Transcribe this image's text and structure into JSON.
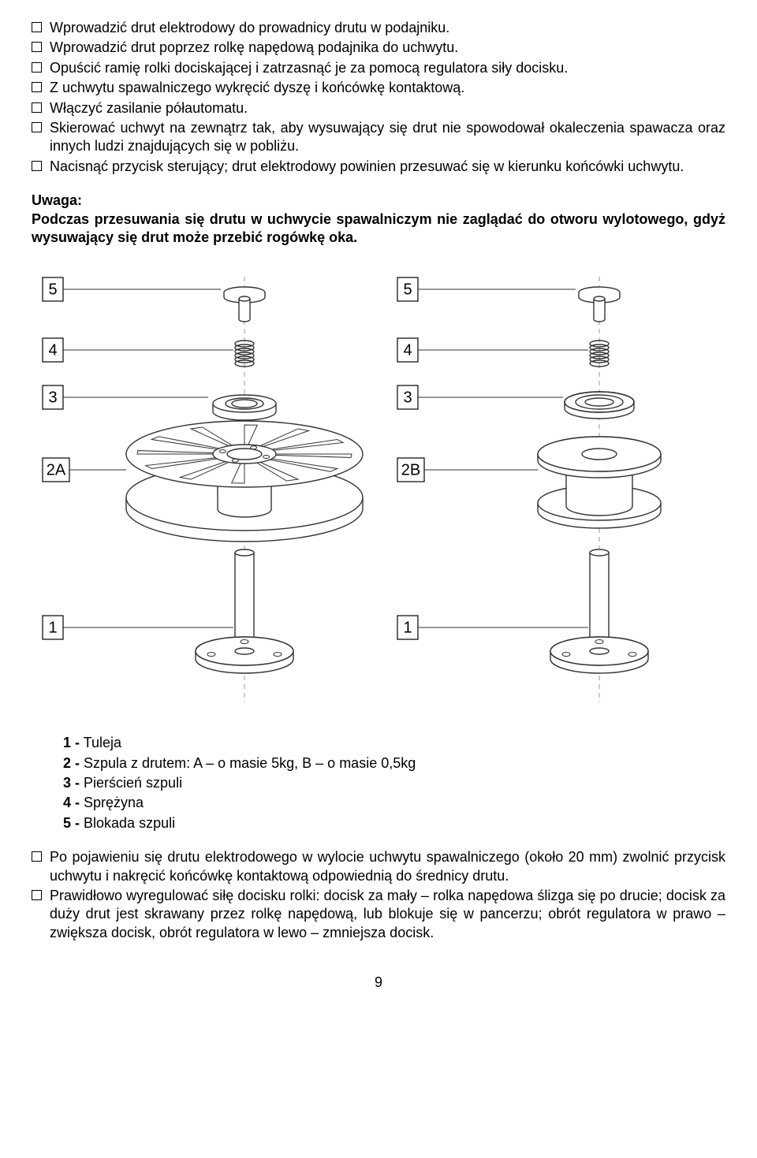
{
  "bullets_top": [
    "Wprowadzić drut elektrodowy do prowadnicy drutu w podajniku.",
    "Wprowadzić drut poprzez rolkę napędową podajnika do uchwytu.",
    "Opuścić ramię rolki dociskającej i zatrzasnąć je za pomocą regulatora siły docisku.",
    "Z uchwytu spawalniczego wykręcić dyszę i końcówkę kontaktową.",
    "Włączyć zasilanie półautomatu.",
    "Skierować uchwyt na zewnątrz tak, aby wysuwający się drut nie spowodował okaleczenia spawacza oraz innych ludzi znajdujących się w pobliżu.",
    "Nacisnąć przycisk sterujący; drut elektrodowy powinien przesuwać się w kierunku końcówki uchwytu."
  ],
  "warning": {
    "title": "Uwaga:",
    "text": "Podczas przesuwania się drutu w uchwycie spawalniczym nie zaglądać do otworu wylotowego, gdyż wysuwający się drut może przebić rogówkę oka."
  },
  "diagram": {
    "left_labels": [
      "5",
      "4",
      "3",
      "2A",
      "1"
    ],
    "right_labels": [
      "5",
      "4",
      "3",
      "2B",
      "1"
    ],
    "stroke": "#333333",
    "stroke_width": 1.4,
    "label_box_stroke": "#000000",
    "label_font_size": 20
  },
  "legend": [
    {
      "num": "1 -",
      "text": " Tuleja"
    },
    {
      "num": "2 -",
      "text": " Szpula z drutem: A – o masie 5kg, B – o masie 0,5kg"
    },
    {
      "num": "3 -",
      "text": " Pierścień szpuli"
    },
    {
      "num": "4 -",
      "text": " Sprężyna"
    },
    {
      "num": "5 -",
      "text": " Blokada szpuli"
    }
  ],
  "bullets_bottom": [
    "Po pojawieniu się drutu elektrodowego w wylocie uchwytu spawalniczego (około 20 mm) zwolnić przycisk uchwytu i nakręcić końcówkę kontaktową odpowiednią do średnicy drutu.",
    "Prawidłowo wyregulować siłę docisku rolki: docisk za mały – rolka napędowa ślizga się po drucie; docisk za duży drut jest skrawany przez rolkę napędową, lub blokuje się w pancerzu; obrót regulatora w prawo – zwiększa docisk, obrót regulatora w lewo – zmniejsza docisk."
  ],
  "page_number": "9"
}
